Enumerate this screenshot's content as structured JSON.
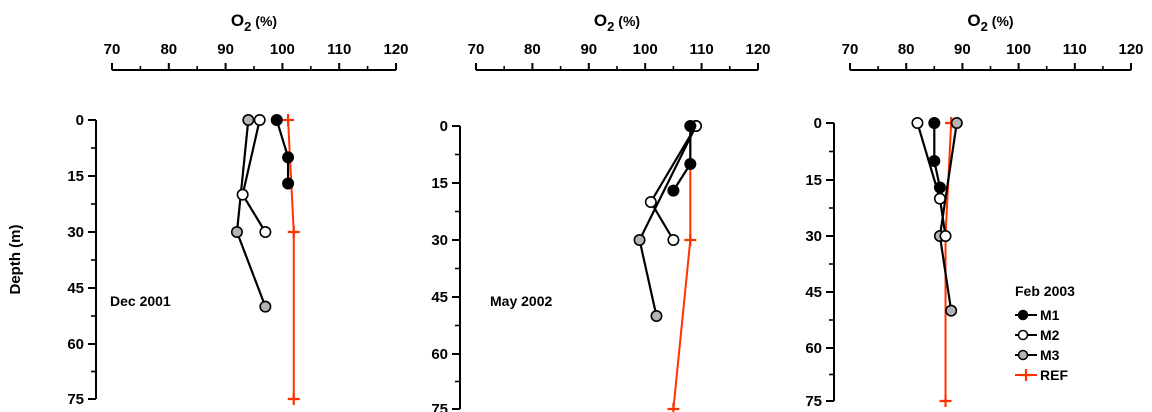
{
  "chart_data": [
    {
      "type": "line",
      "panel_label": "Dec 2001",
      "xlabel": "O2 (%)",
      "ylabel": "Depth (m)",
      "xlim": [
        70,
        120
      ],
      "xticks": [
        70,
        80,
        90,
        100,
        110,
        120
      ],
      "ylim": [
        0,
        75
      ],
      "yticks": [
        0,
        15,
        30,
        45,
        60,
        75
      ],
      "y_inverted": true,
      "grid": false,
      "series": [
        {
          "name": "M1",
          "points": [
            {
              "x": 99,
              "y": 0
            },
            {
              "x": 101,
              "y": 10
            },
            {
              "x": 101,
              "y": 17
            }
          ]
        },
        {
          "name": "M2",
          "points": [
            {
              "x": 96,
              "y": 0
            },
            {
              "x": 93,
              "y": 20
            },
            {
              "x": 97,
              "y": 30
            }
          ]
        },
        {
          "name": "M3",
          "points": [
            {
              "x": 94,
              "y": 0
            },
            {
              "x": 92,
              "y": 30
            },
            {
              "x": 97,
              "y": 50
            }
          ]
        },
        {
          "name": "REF",
          "points": [
            {
              "x": 101,
              "y": 0
            },
            {
              "x": 102,
              "y": 30
            },
            {
              "x": 102,
              "y": 75
            }
          ]
        }
      ]
    },
    {
      "type": "line",
      "panel_label": "May 2002",
      "xlabel": "O2 (%)",
      "ylabel": "",
      "xlim": [
        70,
        120
      ],
      "xticks": [
        70,
        80,
        90,
        100,
        110,
        120
      ],
      "ylim": [
        0,
        75
      ],
      "yticks": [
        0,
        15,
        30,
        45,
        60,
        75
      ],
      "y_inverted": true,
      "grid": false,
      "series": [
        {
          "name": "M1",
          "points": [
            {
              "x": 108,
              "y": 0
            },
            {
              "x": 108,
              "y": 10
            },
            {
              "x": 105,
              "y": 17
            }
          ]
        },
        {
          "name": "M2",
          "points": [
            {
              "x": 109,
              "y": 0
            },
            {
              "x": 101,
              "y": 20
            },
            {
              "x": 105,
              "y": 30
            }
          ]
        },
        {
          "name": "M3",
          "points": [
            {
              "x": 109,
              "y": 0
            },
            {
              "x": 99,
              "y": 30
            },
            {
              "x": 102,
              "y": 50
            }
          ]
        },
        {
          "name": "REF",
          "points": [
            {
              "x": 108,
              "y": 0
            },
            {
              "x": 108,
              "y": 30
            },
            {
              "x": 105,
              "y": 75
            }
          ]
        }
      ]
    },
    {
      "type": "line",
      "panel_label": "Feb 2003",
      "xlabel": "O2 (%)",
      "ylabel": "",
      "xlim": [
        70,
        120
      ],
      "xticks": [
        70,
        80,
        90,
        100,
        110,
        120
      ],
      "ylim": [
        0,
        75
      ],
      "yticks": [
        0,
        15,
        30,
        45,
        60,
        75
      ],
      "y_inverted": true,
      "grid": false,
      "legend": "bottom-right",
      "series": [
        {
          "name": "M1",
          "points": [
            {
              "x": 85,
              "y": 0
            },
            {
              "x": 85,
              "y": 10
            },
            {
              "x": 86,
              "y": 17
            }
          ]
        },
        {
          "name": "M2",
          "points": [
            {
              "x": 82,
              "y": 0
            },
            {
              "x": 86,
              "y": 20
            },
            {
              "x": 87,
              "y": 30
            }
          ]
        },
        {
          "name": "M3",
          "points": [
            {
              "x": 89,
              "y": 0
            },
            {
              "x": 86,
              "y": 30
            },
            {
              "x": 88,
              "y": 50
            }
          ]
        },
        {
          "name": "REF",
          "points": [
            {
              "x": 88,
              "y": 0
            },
            {
              "x": 87,
              "y": 30
            },
            {
              "x": 87,
              "y": 75
            }
          ]
        }
      ]
    }
  ],
  "styles": {
    "M1": {
      "marker": "filled-circle",
      "fill": "#000000",
      "line": "#000000"
    },
    "M2": {
      "marker": "open-circle",
      "fill": "#ffffff",
      "line": "#000000"
    },
    "M3": {
      "marker": "grey-circle",
      "fill": "#b4b4b4",
      "line": "#000000"
    },
    "REF": {
      "marker": "plus",
      "fill": "#ff3300",
      "line": "#ff3300"
    }
  }
}
